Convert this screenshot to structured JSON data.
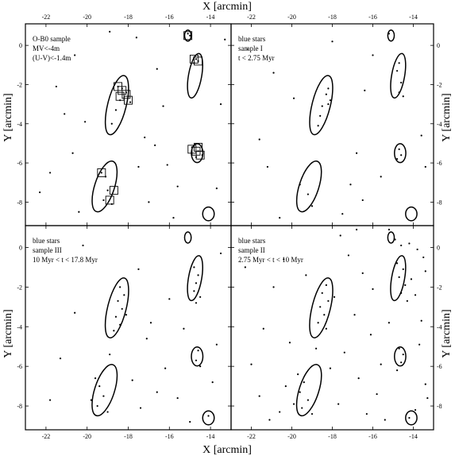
{
  "chart_data": {
    "type": "scatter",
    "xlabel": "X [arcmin]",
    "ylabel": "Y [arcmin]",
    "xlim": [
      -23,
      -13
    ],
    "ylim": [
      -9.2,
      1.1
    ],
    "x_ticks": [
      "-22",
      "-20",
      "-18",
      "-16",
      "-14"
    ],
    "y_ticks": [
      "0",
      "-2",
      "-4",
      "-6",
      "-8"
    ],
    "x_tick_values": [
      -22,
      -20,
      -18,
      -16,
      -14
    ],
    "y_tick_values": [
      0,
      -2,
      -4,
      -6,
      -8
    ],
    "ellipses": [
      {
        "cx": -14.75,
        "cy": -1.55,
        "a": 1.15,
        "b": 0.32,
        "tilt": 80
      },
      {
        "cx": -18.55,
        "cy": -3.05,
        "a": 1.55,
        "b": 0.45,
        "tilt": 76
      },
      {
        "cx": -19.15,
        "cy": -7.2,
        "a": 1.35,
        "b": 0.48,
        "tilt": 72
      },
      {
        "cx": -14.65,
        "cy": -5.5,
        "a": 0.48,
        "b": 0.28,
        "tilt": 90
      },
      {
        "cx": -15.1,
        "cy": 0.5,
        "a": 0.28,
        "b": 0.16,
        "tilt": 90
      },
      {
        "cx": -14.1,
        "cy": -8.6,
        "a": 0.35,
        "b": 0.28,
        "tilt": 90
      }
    ],
    "panels": [
      {
        "label": [
          "O-B0 sample",
          "MV<-4m",
          "(U-V)<-1.4m"
        ],
        "points": [
          [
            -15.1,
            0.6
          ],
          [
            -15.0,
            0.5
          ],
          [
            -14.8,
            -0.6
          ],
          [
            -14.7,
            -0.7
          ],
          [
            -14.6,
            -0.8
          ],
          [
            -14.8,
            -0.9
          ],
          [
            -18.5,
            -2.1
          ],
          [
            -18.3,
            -2.2
          ],
          [
            -18.1,
            -2.4
          ],
          [
            -18.0,
            -2.6
          ],
          [
            -18.4,
            -2.8
          ],
          [
            -17.9,
            -2.9
          ],
          [
            -18.6,
            -3.3
          ],
          [
            -18.8,
            -4.0
          ],
          [
            -14.9,
            -5.2
          ],
          [
            -14.6,
            -5.4
          ],
          [
            -14.4,
            -5.6
          ],
          [
            -14.7,
            -5.7
          ],
          [
            -19.3,
            -6.5
          ],
          [
            -19.1,
            -6.7
          ],
          [
            -19.0,
            -7.4
          ],
          [
            -19.2,
            -7.9
          ],
          [
            -18.8,
            -8.1
          ],
          [
            -20.6,
            -0.5
          ],
          [
            -21.5,
            -2.1
          ],
          [
            -20.1,
            -3.9
          ],
          [
            -16.6,
            -1.2
          ],
          [
            -16.3,
            -3.1
          ],
          [
            -17.2,
            -4.7
          ],
          [
            -15.6,
            -7.2
          ],
          [
            -21.8,
            -6.5
          ],
          [
            -20.4,
            -8.5
          ],
          [
            -17.0,
            -8.0
          ],
          [
            -16.1,
            -6.1
          ],
          [
            -13.5,
            -3.0
          ],
          [
            -13.3,
            0.3
          ],
          [
            -22.3,
            -7.5
          ],
          [
            -17.5,
            -6.2
          ],
          [
            -15.8,
            -8.8
          ],
          [
            -20.7,
            -5.5
          ],
          [
            -21.1,
            -3.5
          ],
          [
            -17.6,
            0.4
          ],
          [
            -18.9,
            0.7
          ],
          [
            -16.7,
            -5.1
          ],
          [
            -13.7,
            -7.3
          ]
        ],
        "boxes": [
          [
            -15.1,
            0.5
          ],
          [
            -14.8,
            -0.7
          ],
          [
            -14.6,
            -0.8
          ],
          [
            -18.5,
            -2.1
          ],
          [
            -18.3,
            -2.3
          ],
          [
            -18.1,
            -2.5
          ],
          [
            -18.0,
            -2.8
          ],
          [
            -18.4,
            -2.6
          ],
          [
            -14.9,
            -5.3
          ],
          [
            -14.7,
            -5.4
          ],
          [
            -14.5,
            -5.6
          ],
          [
            -14.6,
            -5.2
          ],
          [
            -19.3,
            -6.5
          ],
          [
            -18.7,
            -7.4
          ],
          [
            -18.9,
            -7.9
          ]
        ]
      },
      {
        "label": [
          "blue stars",
          "sample I",
          "t < 2.75 Myr"
        ],
        "points": [
          [
            -15.2,
            0.6
          ],
          [
            -14.7,
            -0.9
          ],
          [
            -14.8,
            -1.3
          ],
          [
            -14.6,
            -1.9
          ],
          [
            -14.7,
            -2.4
          ],
          [
            -14.5,
            -2.6
          ],
          [
            -18.2,
            -2.2
          ],
          [
            -18.3,
            -2.5
          ],
          [
            -18.1,
            -2.8
          ],
          [
            -18.5,
            -3.1
          ],
          [
            -18.6,
            -3.6
          ],
          [
            -18.7,
            -4.1
          ],
          [
            -18.2,
            -3.0
          ],
          [
            -14.7,
            -5.3
          ],
          [
            -14.6,
            -5.6
          ],
          [
            -14.8,
            -5.8
          ],
          [
            -19.6,
            -7.1
          ],
          [
            -19.2,
            -7.6
          ],
          [
            -19.0,
            -8.2
          ],
          [
            -20.9,
            -1.4
          ],
          [
            -21.6,
            -4.8
          ],
          [
            -20.6,
            -8.8
          ],
          [
            -17.1,
            -7.1
          ],
          [
            -16.4,
            -2.3
          ],
          [
            -16.8,
            -5.5
          ],
          [
            -13.6,
            -4.6
          ],
          [
            -16.0,
            -0.5
          ],
          [
            -22.2,
            -0.2
          ],
          [
            -17.5,
            -8.6
          ],
          [
            -15.6,
            -6.7
          ],
          [
            -13.4,
            -6.2
          ],
          [
            -19.9,
            -2.7
          ],
          [
            -21.2,
            -6.2
          ],
          [
            -18.0,
            0.2
          ],
          [
            -16.5,
            -7.9
          ]
        ]
      },
      {
        "label": [
          "blue stars",
          "sample III",
          "10 Myr < t < 17.8 Myr"
        ],
        "points": [
          [
            -14.8,
            -1.0
          ],
          [
            -14.6,
            -1.4
          ],
          [
            -14.7,
            -1.8
          ],
          [
            -14.8,
            -2.2
          ],
          [
            -14.5,
            -2.5
          ],
          [
            -14.7,
            -2.8
          ],
          [
            -18.4,
            -2.0
          ],
          [
            -18.2,
            -2.4
          ],
          [
            -18.5,
            -2.7
          ],
          [
            -18.3,
            -3.1
          ],
          [
            -18.6,
            -3.5
          ],
          [
            -18.4,
            -3.9
          ],
          [
            -18.7,
            -4.2
          ],
          [
            -18.1,
            -3.4
          ],
          [
            -14.6,
            -5.2
          ],
          [
            -14.7,
            -5.7
          ],
          [
            -14.5,
            -6.0
          ],
          [
            -19.6,
            -6.6
          ],
          [
            -19.4,
            -7.0
          ],
          [
            -19.2,
            -7.5
          ],
          [
            -19.5,
            -8.0
          ],
          [
            -19.0,
            -8.3
          ],
          [
            -19.8,
            -7.7
          ],
          [
            -14.1,
            -8.5
          ],
          [
            -17.5,
            -1.1
          ],
          [
            -16.9,
            -3.8
          ],
          [
            -17.1,
            -4.6
          ],
          [
            -16.2,
            -6.1
          ],
          [
            -16.6,
            -7.3
          ],
          [
            -15.3,
            -4.1
          ],
          [
            -20.6,
            -3.3
          ],
          [
            -21.3,
            -5.6
          ],
          [
            -21.8,
            -7.7
          ],
          [
            -15.0,
            -8.8
          ],
          [
            -17.8,
            -6.7
          ],
          [
            -13.5,
            -0.3
          ],
          [
            -13.7,
            -4.9
          ],
          [
            -20.2,
            0.1
          ],
          [
            -16.0,
            -2.6
          ],
          [
            -17.4,
            -8.1
          ],
          [
            -18.9,
            -5.4
          ],
          [
            -15.6,
            -7.6
          ],
          [
            -13.9,
            -6.8
          ]
        ]
      },
      {
        "label": [
          "blue stars",
          "sample II",
          "2.75 Myr < t < 10 Myr"
        ],
        "points": [
          [
            -15.2,
            0.9
          ],
          [
            -14.9,
            0.4
          ],
          [
            -14.6,
            0.1
          ],
          [
            -14.2,
            0.2
          ],
          [
            -13.8,
            -0.1
          ],
          [
            -13.5,
            -0.5
          ],
          [
            -14.8,
            -0.8
          ],
          [
            -14.5,
            -1.1
          ],
          [
            -14.7,
            -1.5
          ],
          [
            -14.4,
            -1.9
          ],
          [
            -14.6,
            -2.3
          ],
          [
            -14.3,
            -2.7
          ],
          [
            -14.1,
            -1.6
          ],
          [
            -13.9,
            -2.4
          ],
          [
            -13.4,
            -1.2
          ],
          [
            -18.3,
            -1.9
          ],
          [
            -18.5,
            -2.3
          ],
          [
            -18.2,
            -2.7
          ],
          [
            -18.6,
            -3.0
          ],
          [
            -18.4,
            -3.4
          ],
          [
            -18.7,
            -3.8
          ],
          [
            -18.3,
            -4.1
          ],
          [
            -17.9,
            -2.5
          ],
          [
            -14.7,
            -5.1
          ],
          [
            -14.5,
            -5.4
          ],
          [
            -14.6,
            -5.8
          ],
          [
            -14.8,
            -6.2
          ],
          [
            -19.7,
            -6.4
          ],
          [
            -19.4,
            -6.8
          ],
          [
            -19.6,
            -7.3
          ],
          [
            -19.2,
            -7.7
          ],
          [
            -19.5,
            -8.1
          ],
          [
            -19.0,
            -8.4
          ],
          [
            -19.9,
            -7.9
          ],
          [
            -20.3,
            -7.0
          ],
          [
            -20.6,
            -8.3
          ],
          [
            -14.2,
            -8.6
          ],
          [
            -13.9,
            -8.2
          ],
          [
            -17.2,
            -0.4
          ],
          [
            -16.5,
            -1.3
          ],
          [
            -16.9,
            -3.4
          ],
          [
            -16.1,
            -4.4
          ],
          [
            -17.4,
            -5.3
          ],
          [
            -16.7,
            -6.6
          ],
          [
            -15.8,
            -7.4
          ],
          [
            -15.2,
            -3.8
          ],
          [
            -15.6,
            -5.9
          ],
          [
            -20.9,
            -2.0
          ],
          [
            -21.4,
            -4.1
          ],
          [
            -22.0,
            -5.9
          ],
          [
            -21.6,
            -7.5
          ],
          [
            -21.1,
            -8.7
          ],
          [
            -17.7,
            -7.9
          ],
          [
            -18.1,
            -6.1
          ],
          [
            -13.6,
            -3.7
          ],
          [
            -13.4,
            -6.9
          ],
          [
            -15.4,
            -8.7
          ],
          [
            -16.3,
            -8.4
          ],
          [
            -20.4,
            -0.6
          ],
          [
            -19.3,
            -1.4
          ],
          [
            -17.6,
            0.6
          ],
          [
            -16.8,
            0.9
          ],
          [
            -22.3,
            -1.0
          ],
          [
            -13.7,
            -4.9
          ],
          [
            -13.3,
            -7.6
          ],
          [
            -18.8,
            -5.1
          ],
          [
            -20.1,
            -4.8
          ],
          [
            -16.0,
            -2.1
          ]
        ]
      }
    ]
  }
}
